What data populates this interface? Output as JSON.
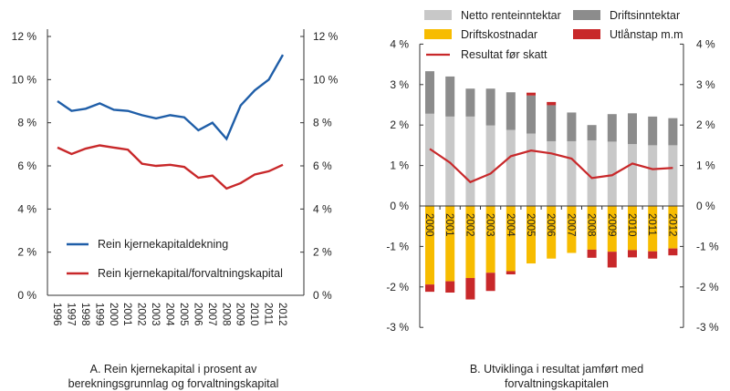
{
  "chart_data": [
    {
      "type": "line",
      "caption": "A. Rein kjernekapital i prosent av berekningsgrunnlag og forvaltningskapital",
      "caption_lines": [
        "A. Rein kjernekapital i prosent av",
        "berekningsgrunnlag og forvaltningskapital"
      ],
      "x": [
        "1996",
        "1997",
        "1998",
        "1999",
        "2000",
        "2001",
        "2002",
        "2003",
        "2004",
        "2005",
        "2006",
        "2007",
        "2008",
        "2009",
        "2010",
        "2011",
        "2012"
      ],
      "ylim": [
        0,
        12
      ],
      "yticks": [
        "0 %",
        "2 %",
        "4 %",
        "6 %",
        "8 %",
        "10 %",
        "12 %"
      ],
      "grid": false,
      "legend_placement": "bottom-left",
      "series": [
        {
          "name": "Rein kjernekapitaldekning",
          "color": "#1f5ea8",
          "values": [
            9.0,
            8.55,
            8.65,
            8.9,
            8.6,
            8.55,
            8.35,
            8.2,
            8.35,
            8.25,
            7.65,
            8.0,
            7.25,
            8.8,
            9.5,
            10.0,
            11.15
          ]
        },
        {
          "name": "Rein kjernekapital/forvaltningskapital",
          "color": "#c8282a",
          "values": [
            6.85,
            6.55,
            6.8,
            6.95,
            6.85,
            6.75,
            6.1,
            6.0,
            6.05,
            5.95,
            5.45,
            5.55,
            4.95,
            5.2,
            5.6,
            5.75,
            6.05
          ]
        }
      ]
    },
    {
      "type": "bar",
      "stacked": true,
      "caption_lines": [
        "B. Utviklinga i resultat jamført med",
        "forvaltningskapitalen"
      ],
      "categories": [
        "2000",
        "2001",
        "2002",
        "2003",
        "2004",
        "2005",
        "2006",
        "2007",
        "2008",
        "2009",
        "2010",
        "2011",
        "2012"
      ],
      "ylim": [
        -3,
        4
      ],
      "yticks": [
        "-3 %",
        "-2 %",
        "-1 %",
        "0 %",
        "1 %",
        "2 %",
        "3 %",
        "4 %"
      ],
      "grid": false,
      "legend_placement": "top",
      "series": [
        {
          "name": "Netto renteinntektar",
          "color": "#c8c8c8",
          "values": [
            2.28,
            2.21,
            2.21,
            1.99,
            1.88,
            1.79,
            1.6,
            1.6,
            1.62,
            1.59,
            1.53,
            1.5,
            1.5
          ]
        },
        {
          "name": "Driftsinntektar",
          "color": "#8c8c8c",
          "values": [
            1.05,
            0.99,
            0.69,
            0.91,
            0.93,
            0.94,
            0.89,
            0.71,
            0.38,
            0.68,
            0.76,
            0.71,
            0.67
          ]
        },
        {
          "name": "Driftskostnadar",
          "color": "#f7bc00",
          "values": [
            -1.94,
            -1.86,
            -1.78,
            -1.65,
            -1.61,
            -1.42,
            -1.3,
            -1.16,
            -1.08,
            -1.13,
            -1.09,
            -1.12,
            -1.05
          ]
        },
        {
          "name": "Utlånstap m.m",
          "color": "#c8282a",
          "values": [
            -0.18,
            -0.28,
            -0.53,
            -0.45,
            -0.08,
            0.07,
            0.08,
            0,
            -0.2,
            -0.39,
            -0.18,
            -0.18,
            -0.17
          ]
        },
        {
          "name": "Resultat før skatt",
          "type": "line",
          "color": "#c8282a",
          "values": [
            1.41,
            1.07,
            0.59,
            0.8,
            1.23,
            1.37,
            1.3,
            1.17,
            0.69,
            0.76,
            1.05,
            0.91,
            0.94
          ]
        }
      ]
    }
  ]
}
